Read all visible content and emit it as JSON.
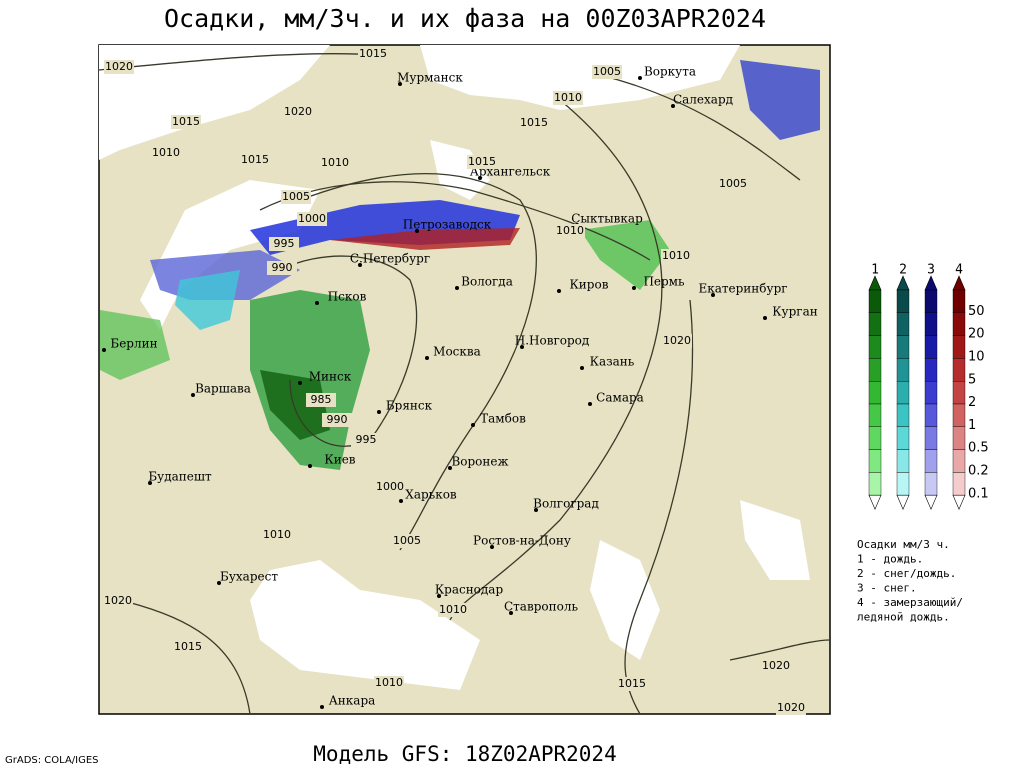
{
  "title": "Осадки, мм/3ч. и их фаза на 00Z03APR2024",
  "cities": [
    "Мурманск",
    "Воркута",
    "Салехард",
    "Архангельск",
    "Сыктывкар",
    "Петрозаводск",
    "С.Петербург",
    "Вологда",
    "Киров",
    "Пермь",
    "Екатеринбург",
    "Курган",
    "Псков",
    "Берлин",
    "Москва",
    "Н.Новгород",
    "Казань",
    "Минск",
    "Варшава",
    "Самара",
    "Брянск",
    "Тамбов",
    "Киев",
    "Воронеж",
    "Будапешт",
    "Харьков",
    "Волгоград",
    "Ростов-на-Дону",
    "Бухарест",
    "Краснодар",
    "Ставрополь",
    "Анкара"
  ],
  "isobars": [
    1020,
    1015,
    1005,
    1010,
    1020,
    1015,
    1015,
    1010,
    1015,
    1010,
    1015,
    1005,
    1005,
    1000,
    1010,
    995,
    1010,
    990,
    1020,
    985,
    990,
    995,
    1000,
    1010,
    1005,
    1020,
    1010,
    1015,
    1020,
    1010,
    1015,
    1020
  ],
  "legend": {
    "phases": [
      "1",
      "2",
      "3",
      "4"
    ],
    "scale": [
      50,
      20,
      10,
      5,
      2,
      1,
      0.5,
      0.2,
      0.1
    ],
    "notes": [
      "Осадки мм/3 ч.",
      "1 - дождь.",
      "2 - снег/дождь.",
      "3 - снег.",
      "4 - замерзающий/",
      "ледяной дождь."
    ]
  },
  "model": "Модель GFS: 18Z02APR2024",
  "credit": "GrADS: COLA/IGES"
}
